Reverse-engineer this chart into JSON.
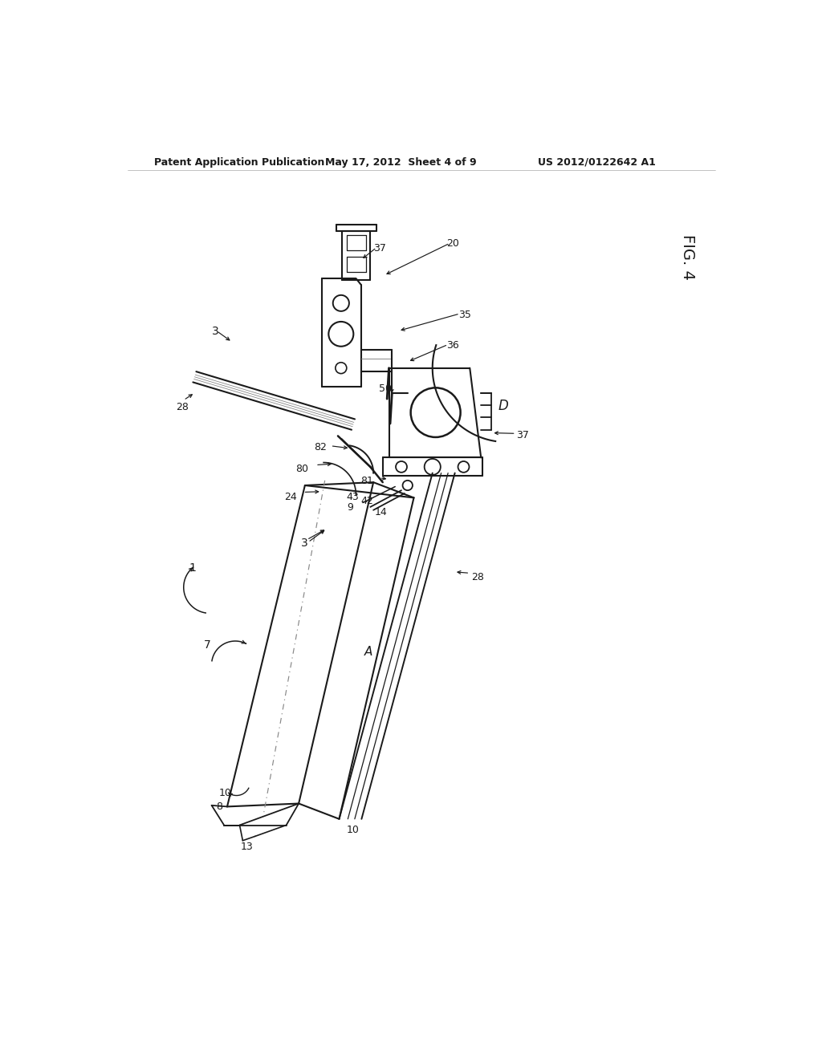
{
  "bg_color": "#ffffff",
  "header_left": "Patent Application Publication",
  "header_center": "May 17, 2012  Sheet 4 of 9",
  "header_right": "US 2012/0122642 A1",
  "fig_label": "FIG. 4",
  "line_color": "#1a1a1a",
  "text_color": "#1a1a1a"
}
